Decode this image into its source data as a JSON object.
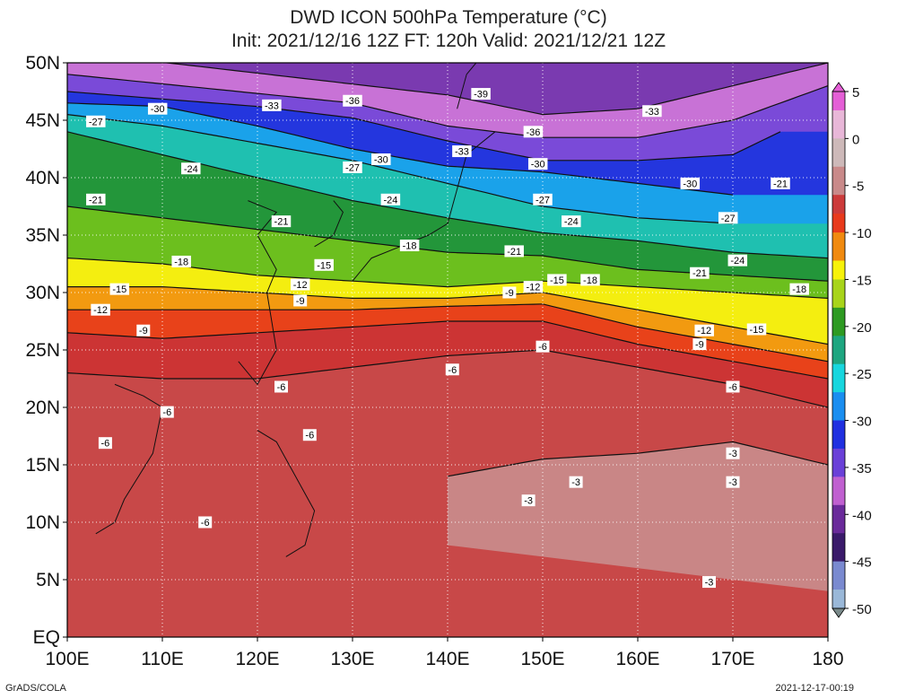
{
  "header": {
    "title": "DWD ICON 500hPa Temperature (°C)",
    "subtitle": "Init: 2021/12/16 12Z  FT: 120h  Valid: 2021/12/21 12Z"
  },
  "axes": {
    "lat_labels": [
      "50N",
      "45N",
      "40N",
      "35N",
      "30N",
      "25N",
      "20N",
      "15N",
      "10N",
      "5N",
      "EQ"
    ],
    "lat_values": [
      50,
      45,
      40,
      35,
      30,
      25,
      20,
      15,
      10,
      5,
      0
    ],
    "lon_labels": [
      "100E",
      "110E",
      "120E",
      "130E",
      "140E",
      "150E",
      "160E",
      "170E",
      "180"
    ],
    "lon_values": [
      100,
      110,
      120,
      130,
      140,
      150,
      160,
      170,
      180
    ]
  },
  "colorbar": {
    "tick_labels": [
      "5",
      "0",
      "-5",
      "-10",
      "-15",
      "-20",
      "-25",
      "-30",
      "-35",
      "-40",
      "-45",
      "-50"
    ],
    "tick_values": [
      5,
      0,
      -5,
      -10,
      -15,
      -20,
      -25,
      -30,
      -35,
      -40,
      -45,
      -50
    ],
    "stops": [
      {
        "v": 5,
        "color": "#e45fd6"
      },
      {
        "v": 3,
        "color": "#e8b7d8"
      },
      {
        "v": 0,
        "color": "#cdb9b9"
      },
      {
        "v": -3,
        "color": "#c98a8a"
      },
      {
        "v": -6,
        "color": "#cc3b3b"
      },
      {
        "v": -8,
        "color": "#e83a1c"
      },
      {
        "v": -10,
        "color": "#f08a10"
      },
      {
        "v": -13,
        "color": "#f7f20a"
      },
      {
        "v": -15,
        "color": "#a8d41a"
      },
      {
        "v": -18,
        "color": "#2e9a22"
      },
      {
        "v": -21,
        "color": "#1ea680"
      },
      {
        "v": -24,
        "color": "#18d6de"
      },
      {
        "v": -27,
        "color": "#1a8ef0"
      },
      {
        "v": -30,
        "color": "#2030e0"
      },
      {
        "v": -33,
        "color": "#6a40d8"
      },
      {
        "v": -36,
        "color": "#c060d0"
      },
      {
        "v": -39,
        "color": "#6a2a9a"
      },
      {
        "v": -42,
        "color": "#3a1a6a"
      },
      {
        "v": -45,
        "color": "#7a8ad0"
      },
      {
        "v": -48,
        "color": "#9ab8d8"
      },
      {
        "v": -50,
        "color": "#7a8a8a"
      }
    ]
  },
  "contours": [
    {
      "label": "-39",
      "lat_profile": [
        [
          100,
          51
        ],
        [
          140,
          47.2
        ],
        [
          150,
          45.5
        ],
        [
          160,
          46
        ],
        [
          170,
          48
        ],
        [
          180,
          50
        ]
      ]
    },
    {
      "label": "-36",
      "lat_profile": [
        [
          100,
          49
        ],
        [
          130,
          46.5
        ],
        [
          140,
          44.5
        ],
        [
          150,
          43.5
        ],
        [
          160,
          43.5
        ],
        [
          170,
          45
        ],
        [
          180,
          48
        ]
      ]
    },
    {
      "label": "-33",
      "lat_profile": [
        [
          100,
          47.5
        ],
        [
          120,
          46.2
        ],
        [
          130,
          45.2
        ],
        [
          140,
          43.2
        ],
        [
          150,
          41.5
        ],
        [
          160,
          41.5
        ],
        [
          170,
          42
        ],
        [
          175,
          44
        ]
      ]
    },
    {
      "label": "-30",
      "lat_profile": [
        [
          100,
          46.5
        ],
        [
          110,
          46.2
        ],
        [
          120,
          44.5
        ],
        [
          130,
          42.5
        ],
        [
          140,
          41
        ],
        [
          150,
          40.5
        ],
        [
          160,
          39.5
        ],
        [
          170,
          38.5
        ]
      ]
    },
    {
      "label": "-27",
      "lat_profile": [
        [
          100,
          45.5
        ],
        [
          110,
          44.5
        ],
        [
          120,
          43
        ],
        [
          130,
          41.5
        ],
        [
          140,
          39.5
        ],
        [
          150,
          37.5
        ],
        [
          160,
          36.5
        ],
        [
          170,
          36
        ]
      ]
    },
    {
      "label": "-24",
      "lat_profile": [
        [
          100,
          44
        ],
        [
          110,
          42
        ],
        [
          120,
          40
        ],
        [
          130,
          38
        ],
        [
          140,
          36.5
        ],
        [
          150,
          35.2
        ],
        [
          160,
          34.5
        ],
        [
          170,
          33.5
        ],
        [
          180,
          33
        ]
      ]
    },
    {
      "label": "-21",
      "lat_profile": [
        [
          100,
          37.5
        ],
        [
          110,
          36.5
        ],
        [
          120,
          35.5
        ],
        [
          130,
          34.5
        ],
        [
          140,
          33.5
        ],
        [
          150,
          33.2
        ],
        [
          160,
          32
        ],
        [
          170,
          31.5
        ],
        [
          180,
          31
        ]
      ]
    },
    {
      "label": "-18",
      "lat_profile": [
        [
          100,
          33
        ],
        [
          110,
          32.5
        ],
        [
          120,
          31.5
        ],
        [
          130,
          31
        ],
        [
          140,
          30.5
        ],
        [
          150,
          31
        ],
        [
          160,
          30.5
        ],
        [
          170,
          30
        ],
        [
          180,
          29.5
        ]
      ]
    },
    {
      "label": "-15",
      "lat_profile": [
        [
          100,
          30.5
        ],
        [
          110,
          30.5
        ],
        [
          120,
          30
        ],
        [
          130,
          29.5
        ],
        [
          140,
          29.5
        ],
        [
          150,
          30
        ],
        [
          160,
          28.5
        ],
        [
          170,
          27
        ],
        [
          180,
          25.5
        ]
      ]
    },
    {
      "label": "-12",
      "lat_profile": [
        [
          100,
          28.5
        ],
        [
          110,
          28.5
        ],
        [
          120,
          28.5
        ],
        [
          130,
          28.5
        ],
        [
          140,
          28.8
        ],
        [
          150,
          29
        ],
        [
          160,
          27
        ],
        [
          170,
          25.5
        ],
        [
          180,
          24
        ]
      ]
    },
    {
      "label": "-9",
      "lat_profile": [
        [
          100,
          26.5
        ],
        [
          110,
          26
        ],
        [
          120,
          26.5
        ],
        [
          130,
          27
        ],
        [
          140,
          27.5
        ],
        [
          150,
          27.5
        ],
        [
          160,
          25.5
        ],
        [
          170,
          24
        ],
        [
          180,
          22.5
        ]
      ]
    },
    {
      "label": "-6",
      "lat_profile": [
        [
          100,
          23
        ],
        [
          110,
          22.5
        ],
        [
          120,
          22.5
        ],
        [
          130,
          23.5
        ],
        [
          140,
          24.5
        ],
        [
          150,
          25
        ],
        [
          160,
          23.5
        ],
        [
          170,
          22
        ],
        [
          180,
          20
        ]
      ]
    },
    {
      "label": "-3",
      "lat_profile": [
        [
          140,
          14
        ],
        [
          150,
          15.5
        ],
        [
          160,
          16
        ],
        [
          170,
          17
        ],
        [
          180,
          15
        ]
      ]
    }
  ],
  "contour_labels": [
    {
      "text": "-30",
      "lon": 109.5,
      "lat": 46
    },
    {
      "text": "-33",
      "lon": 121.5,
      "lat": 46.3
    },
    {
      "text": "-36",
      "lon": 130,
      "lat": 46.7
    },
    {
      "text": "-39",
      "lon": 143.5,
      "lat": 47.3
    },
    {
      "text": "-33",
      "lon": 161.5,
      "lat": 45.8
    },
    {
      "text": "-36",
      "lon": 149,
      "lat": 44
    },
    {
      "text": "-27",
      "lon": 103,
      "lat": 44.9
    },
    {
      "text": "-33",
      "lon": 141.5,
      "lat": 42.3
    },
    {
      "text": "-30",
      "lon": 133,
      "lat": 41.6
    },
    {
      "text": "-27",
      "lon": 130,
      "lat": 40.9
    },
    {
      "text": "-30",
      "lon": 149.5,
      "lat": 41.2
    },
    {
      "text": "-24",
      "lon": 113,
      "lat": 40.8
    },
    {
      "text": "-30",
      "lon": 165.5,
      "lat": 39.5
    },
    {
      "text": "-21",
      "lon": 175,
      "lat": 39.5
    },
    {
      "text": "-24",
      "lon": 134,
      "lat": 38.1
    },
    {
      "text": "-27",
      "lon": 150,
      "lat": 38.1
    },
    {
      "text": "-21",
      "lon": 103,
      "lat": 38.1
    },
    {
      "text": "-27",
      "lon": 169.5,
      "lat": 36.5
    },
    {
      "text": "-21",
      "lon": 122.5,
      "lat": 36.2
    },
    {
      "text": "-24",
      "lon": 153,
      "lat": 36.2
    },
    {
      "text": "-18",
      "lon": 136,
      "lat": 34.1
    },
    {
      "text": "-21",
      "lon": 147,
      "lat": 33.6
    },
    {
      "text": "-18",
      "lon": 112,
      "lat": 32.7
    },
    {
      "text": "-24",
      "lon": 170.5,
      "lat": 32.8
    },
    {
      "text": "-15",
      "lon": 127,
      "lat": 32.4
    },
    {
      "text": "-21",
      "lon": 166.5,
      "lat": 31.7
    },
    {
      "text": "-12",
      "lon": 124.5,
      "lat": 30.7
    },
    {
      "text": "-18",
      "lon": 155,
      "lat": 31.1
    },
    {
      "text": "-15",
      "lon": 151.5,
      "lat": 31.1
    },
    {
      "text": "-12",
      "lon": 149,
      "lat": 30.5
    },
    {
      "text": "-15",
      "lon": 105.5,
      "lat": 30.3
    },
    {
      "text": "-18",
      "lon": 177,
      "lat": 30.3
    },
    {
      "text": "-9",
      "lon": 146.5,
      "lat": 30
    },
    {
      "text": "-9",
      "lon": 124.5,
      "lat": 29.3
    },
    {
      "text": "-12",
      "lon": 103.5,
      "lat": 28.5
    },
    {
      "text": "-12",
      "lon": 167,
      "lat": 26.7
    },
    {
      "text": "-15",
      "lon": 172.5,
      "lat": 26.8
    },
    {
      "text": "-9",
      "lon": 108,
      "lat": 26.7
    },
    {
      "text": "-9",
      "lon": 166.5,
      "lat": 25.5
    },
    {
      "text": "-6",
      "lon": 150,
      "lat": 25.3
    },
    {
      "text": "-6",
      "lon": 140.5,
      "lat": 23.3
    },
    {
      "text": "-6",
      "lon": 122.5,
      "lat": 21.8
    },
    {
      "text": "-6",
      "lon": 170,
      "lat": 21.8
    },
    {
      "text": "-6",
      "lon": 110.5,
      "lat": 19.6
    },
    {
      "text": "-6",
      "lon": 125.5,
      "lat": 17.6
    },
    {
      "text": "-6",
      "lon": 104,
      "lat": 16.9
    },
    {
      "text": "-3",
      "lon": 170,
      "lat": 16
    },
    {
      "text": "-3",
      "lon": 153.5,
      "lat": 13.5
    },
    {
      "text": "-3",
      "lon": 170,
      "lat": 13.5
    },
    {
      "text": "-3",
      "lon": 148.5,
      "lat": 11.9
    },
    {
      "text": "-6",
      "lon": 114.5,
      "lat": 10
    },
    {
      "text": "-3",
      "lon": 167.5,
      "lat": 4.8
    }
  ],
  "footer": {
    "credit": "GrADS/COLA",
    "timestamp": "2021-12-17-00:19"
  }
}
